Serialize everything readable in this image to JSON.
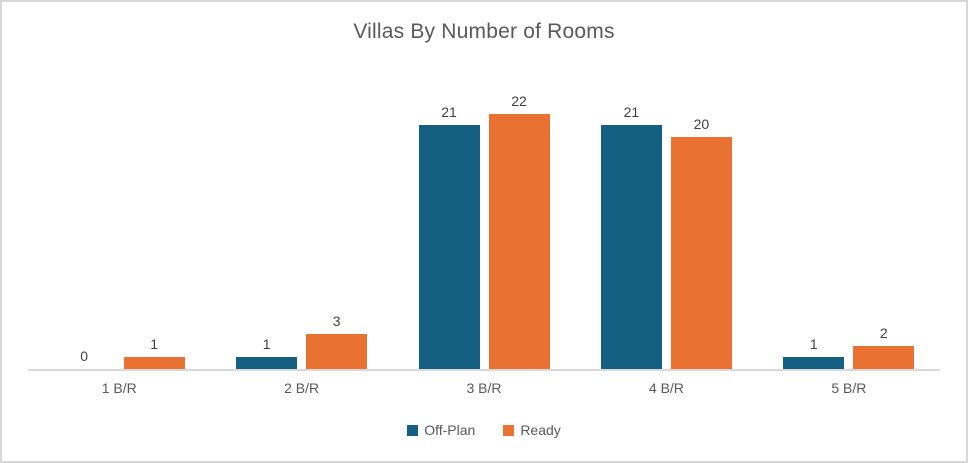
{
  "chart_data": {
    "type": "bar",
    "title": "Villas By Number of Rooms",
    "categories": [
      "1 B/R",
      "2 B/R",
      "3 B/R",
      "4 B/R",
      "5 B/R"
    ],
    "series": [
      {
        "name": "Off-Plan",
        "color": "#156082",
        "values": [
          0,
          1,
          21,
          21,
          1
        ]
      },
      {
        "name": "Ready",
        "color": "#E97132",
        "values": [
          1,
          3,
          22,
          20,
          2
        ]
      }
    ],
    "xlabel": "",
    "ylabel": "",
    "ylim": [
      0,
      25
    ],
    "grid": false,
    "y_axis_visible": false,
    "data_labels": true,
    "legend_position": "bottom",
    "colors": {
      "title_text": "#595959",
      "data_label_text": "#404040",
      "category_label_text": "#595959",
      "axis_line": "#D9D9D9",
      "frame_border": "#D6D6D6",
      "background": "#FFFFFF"
    }
  }
}
